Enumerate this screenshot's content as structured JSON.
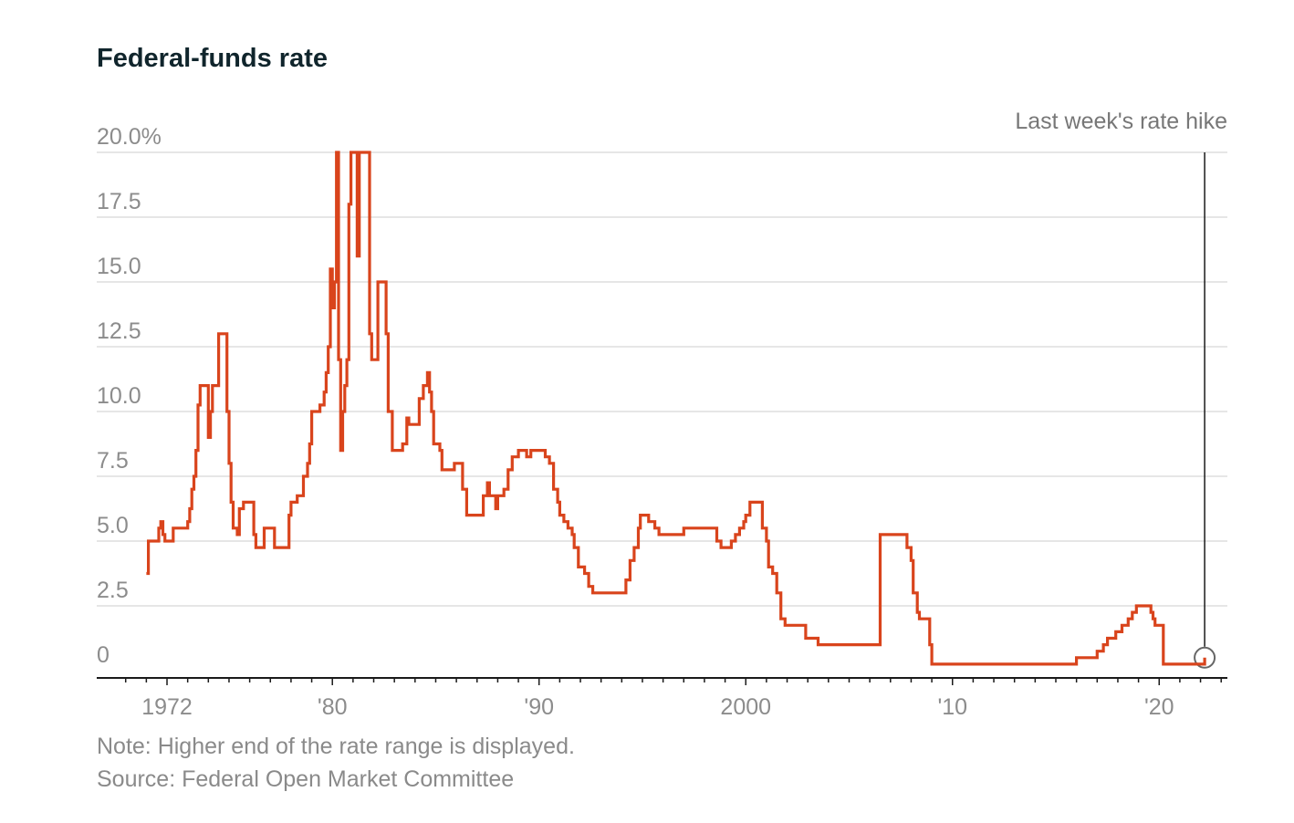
{
  "chart_data": {
    "type": "line",
    "title": "Federal-funds rate",
    "xlabel": "",
    "ylabel": "",
    "ylim": [
      0,
      20
    ],
    "xlim": [
      1968.6,
      2023.3
    ],
    "y_tick_labels": [
      "0",
      "2.5",
      "5.0",
      "7.5",
      "10.0",
      "12.5",
      "15.0",
      "17.5",
      "20.0%"
    ],
    "y_tick_values": [
      0,
      2.5,
      5,
      7.5,
      10,
      12.5,
      15,
      17.5,
      20
    ],
    "x_tick_labels": [
      "1972",
      "'80",
      "'90",
      "2000",
      "'10",
      "'20"
    ],
    "x_tick_values": [
      1972,
      1980,
      1990,
      2000,
      2010,
      2020
    ],
    "grid": true,
    "annotations": [
      {
        "text": "Last week's rate hike",
        "x": 2022.2
      }
    ],
    "series": [
      {
        "color": "#d9441c",
        "points": [
          [
            1971.0,
            3.75
          ],
          [
            1971.1,
            5.0
          ],
          [
            1971.5,
            5.0
          ],
          [
            1971.6,
            5.5
          ],
          [
            1971.7,
            5.75
          ],
          [
            1971.8,
            5.25
          ],
          [
            1971.9,
            5.0
          ],
          [
            1972.2,
            5.0
          ],
          [
            1972.3,
            5.5
          ],
          [
            1972.9,
            5.5
          ],
          [
            1973.0,
            5.75
          ],
          [
            1973.1,
            6.25
          ],
          [
            1973.2,
            7.0
          ],
          [
            1973.3,
            7.5
          ],
          [
            1973.4,
            8.5
          ],
          [
            1973.5,
            10.25
          ],
          [
            1973.6,
            11.0
          ],
          [
            1973.9,
            11.0
          ],
          [
            1974.0,
            9.0
          ],
          [
            1974.1,
            10.0
          ],
          [
            1974.2,
            11.0
          ],
          [
            1974.4,
            11.0
          ],
          [
            1974.5,
            13.0
          ],
          [
            1974.8,
            13.0
          ],
          [
            1974.9,
            10.0
          ],
          [
            1975.0,
            8.0
          ],
          [
            1975.1,
            6.5
          ],
          [
            1975.2,
            5.5
          ],
          [
            1975.4,
            5.25
          ],
          [
            1975.5,
            6.25
          ],
          [
            1975.7,
            6.5
          ],
          [
            1976.1,
            6.5
          ],
          [
            1976.2,
            5.25
          ],
          [
            1976.3,
            4.75
          ],
          [
            1976.6,
            4.75
          ],
          [
            1976.7,
            5.5
          ],
          [
            1977.1,
            5.5
          ],
          [
            1977.2,
            4.75
          ],
          [
            1977.8,
            4.75
          ],
          [
            1977.9,
            6.0
          ],
          [
            1978.0,
            6.5
          ],
          [
            1978.3,
            6.75
          ],
          [
            1978.6,
            7.5
          ],
          [
            1978.8,
            8.0
          ],
          [
            1978.9,
            8.75
          ],
          [
            1979.0,
            10.0
          ],
          [
            1979.4,
            10.25
          ],
          [
            1979.6,
            10.75
          ],
          [
            1979.7,
            11.5
          ],
          [
            1979.8,
            12.5
          ],
          [
            1979.9,
            15.5
          ],
          [
            1980.0,
            14.0
          ],
          [
            1980.1,
            15.0
          ],
          [
            1980.2,
            20.0
          ],
          [
            1980.3,
            12.0
          ],
          [
            1980.4,
            8.5
          ],
          [
            1980.5,
            10.0
          ],
          [
            1980.6,
            11.0
          ],
          [
            1980.7,
            12.0
          ],
          [
            1980.8,
            18.0
          ],
          [
            1980.9,
            20.0
          ],
          [
            1981.2,
            16.0
          ],
          [
            1981.3,
            20.0
          ],
          [
            1981.7,
            20.0
          ],
          [
            1981.8,
            13.0
          ],
          [
            1981.9,
            12.0
          ],
          [
            1982.1,
            12.0
          ],
          [
            1982.2,
            15.0
          ],
          [
            1982.5,
            15.0
          ],
          [
            1982.6,
            13.0
          ],
          [
            1982.7,
            10.0
          ],
          [
            1982.9,
            8.5
          ],
          [
            1983.3,
            8.5
          ],
          [
            1983.4,
            8.75
          ],
          [
            1983.6,
            9.75
          ],
          [
            1983.7,
            9.5
          ],
          [
            1984.2,
            10.5
          ],
          [
            1984.4,
            11.0
          ],
          [
            1984.6,
            11.5
          ],
          [
            1984.7,
            10.75
          ],
          [
            1984.8,
            10.0
          ],
          [
            1984.9,
            8.75
          ],
          [
            1985.2,
            8.5
          ],
          [
            1985.3,
            7.75
          ],
          [
            1985.8,
            7.75
          ],
          [
            1985.9,
            8.0
          ],
          [
            1986.2,
            8.0
          ],
          [
            1986.3,
            7.0
          ],
          [
            1986.5,
            6.0
          ],
          [
            1987.2,
            6.0
          ],
          [
            1987.3,
            6.75
          ],
          [
            1987.5,
            7.25
          ],
          [
            1987.6,
            6.75
          ],
          [
            1987.9,
            6.25
          ],
          [
            1988.0,
            6.75
          ],
          [
            1988.3,
            7.0
          ],
          [
            1988.5,
            7.75
          ],
          [
            1988.7,
            8.25
          ],
          [
            1988.9,
            8.25
          ],
          [
            1989.0,
            8.5
          ],
          [
            1989.3,
            8.5
          ],
          [
            1989.4,
            8.25
          ],
          [
            1989.6,
            8.5
          ],
          [
            1990.1,
            8.5
          ],
          [
            1990.3,
            8.25
          ],
          [
            1990.5,
            8.0
          ],
          [
            1990.7,
            7.0
          ],
          [
            1990.9,
            6.5
          ],
          [
            1991.0,
            6.0
          ],
          [
            1991.2,
            5.75
          ],
          [
            1991.4,
            5.5
          ],
          [
            1991.6,
            5.25
          ],
          [
            1991.7,
            4.75
          ],
          [
            1991.9,
            4.0
          ],
          [
            1992.2,
            3.75
          ],
          [
            1992.4,
            3.25
          ],
          [
            1992.6,
            3.0
          ],
          [
            1994.0,
            3.0
          ],
          [
            1994.2,
            3.5
          ],
          [
            1994.4,
            4.25
          ],
          [
            1994.6,
            4.75
          ],
          [
            1994.8,
            5.5
          ],
          [
            1994.9,
            6.0
          ],
          [
            1995.3,
            5.75
          ],
          [
            1995.6,
            5.5
          ],
          [
            1995.8,
            5.25
          ],
          [
            1996.9,
            5.25
          ],
          [
            1997.0,
            5.5
          ],
          [
            1998.5,
            5.5
          ],
          [
            1998.6,
            5.0
          ],
          [
            1998.8,
            4.75
          ],
          [
            1999.3,
            5.0
          ],
          [
            1999.5,
            5.25
          ],
          [
            1999.7,
            5.5
          ],
          [
            1999.9,
            5.75
          ],
          [
            2000.0,
            6.0
          ],
          [
            2000.2,
            6.5
          ],
          [
            2000.7,
            6.5
          ],
          [
            2000.8,
            5.5
          ],
          [
            2001.0,
            5.0
          ],
          [
            2001.1,
            4.0
          ],
          [
            2001.3,
            3.75
          ],
          [
            2001.5,
            3.0
          ],
          [
            2001.7,
            2.0
          ],
          [
            2001.9,
            1.75
          ],
          [
            2002.9,
            1.25
          ],
          [
            2003.5,
            1.0
          ],
          [
            2004.4,
            1.0
          ],
          [
            2006.5,
            5.25
          ],
          [
            2007.6,
            5.25
          ],
          [
            2007.8,
            4.75
          ],
          [
            2008.0,
            4.25
          ],
          [
            2008.1,
            3.0
          ],
          [
            2008.3,
            2.25
          ],
          [
            2008.4,
            2.0
          ],
          [
            2008.8,
            2.0
          ],
          [
            2008.9,
            1.0
          ],
          [
            2009.0,
            0.25
          ],
          [
            2015.9,
            0.25
          ],
          [
            2016.0,
            0.5
          ],
          [
            2016.9,
            0.5
          ],
          [
            2017.0,
            0.75
          ],
          [
            2017.3,
            1.0
          ],
          [
            2017.5,
            1.25
          ],
          [
            2017.9,
            1.5
          ],
          [
            2018.2,
            1.75
          ],
          [
            2018.5,
            2.0
          ],
          [
            2018.7,
            2.25
          ],
          [
            2018.9,
            2.5
          ],
          [
            2019.5,
            2.5
          ],
          [
            2019.6,
            2.25
          ],
          [
            2019.7,
            2.0
          ],
          [
            2019.8,
            1.75
          ],
          [
            2020.1,
            1.75
          ],
          [
            2020.2,
            0.25
          ],
          [
            2022.1,
            0.25
          ],
          [
            2022.2,
            0.5
          ]
        ]
      }
    ]
  },
  "footer": {
    "note": "Note: Higher end of the rate range is displayed.",
    "source": "Source: Federal Open Market Committee"
  },
  "colors": {
    "line": "#d9441c",
    "grid": "#dddddd",
    "axis": "#1a1a1a",
    "marker": "#666666"
  }
}
